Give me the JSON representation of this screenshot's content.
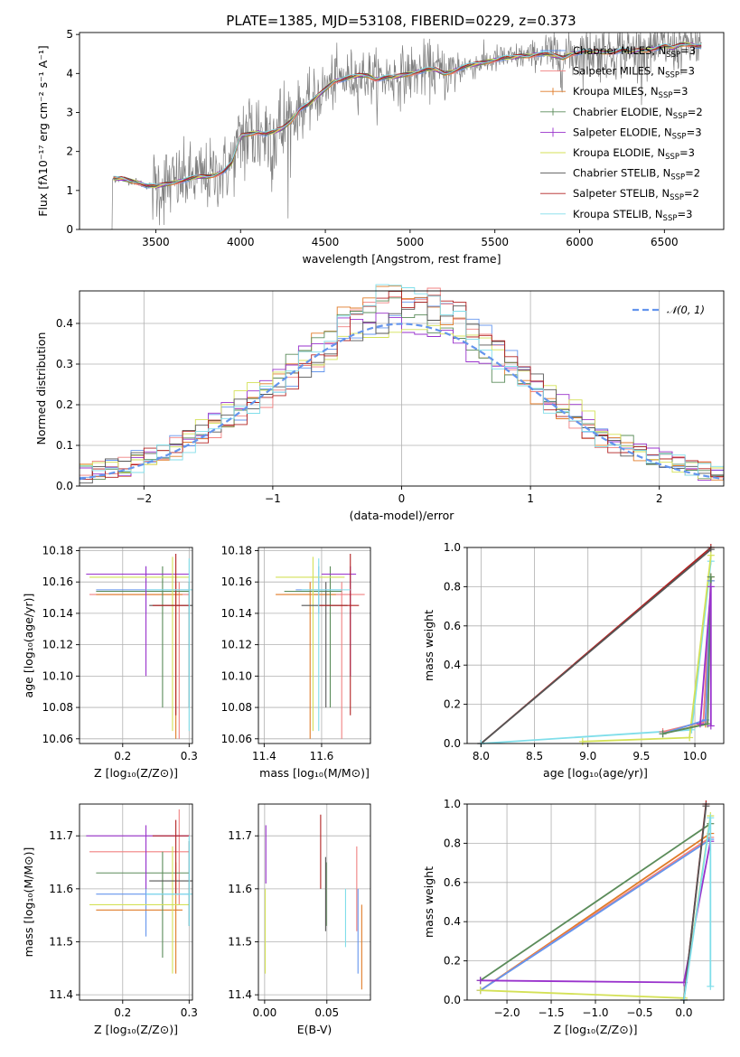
{
  "colors": {
    "chabrier_miles": "#6495ed",
    "salpeter_miles": "#f08080",
    "kroupa_miles": "#e07b28",
    "chabrier_elodie": "#5b8c5a",
    "salpeter_elodie": "#9932cc",
    "kroupa_elodie": "#d4e157",
    "chabrier_stelib": "#555555",
    "salpeter_stelib": "#b22222",
    "kroupa_stelib": "#80deea",
    "data_gray": "#808080",
    "normal": "#6495ed"
  },
  "models": [
    {
      "key": "chabrier_miles",
      "label": "Chabrier MILES, N",
      "nssp": "3"
    },
    {
      "key": "salpeter_miles",
      "label": "Salpeter MILES, N",
      "nssp": "3"
    },
    {
      "key": "kroupa_miles",
      "label": "Kroupa MILES, N",
      "nssp": "3"
    },
    {
      "key": "chabrier_elodie",
      "label": "Chabrier ELODIE, N",
      "nssp": "2"
    },
    {
      "key": "salpeter_elodie",
      "label": "Salpeter ELODIE, N",
      "nssp": "3"
    },
    {
      "key": "kroupa_elodie",
      "label": "Kroupa ELODIE, N",
      "nssp": "3"
    },
    {
      "key": "chabrier_stelib",
      "label": "Chabrier STELIB, N",
      "nssp": "2"
    },
    {
      "key": "salpeter_stelib",
      "label": "Salpeter STELIB, N",
      "nssp": "2"
    },
    {
      "key": "kroupa_stelib",
      "label": "Kroupa STELIB, N",
      "nssp": "3"
    }
  ],
  "nssp_subscript": "SSP",
  "chart_data": [
    {
      "id": "spectrum",
      "type": "line",
      "title": "PLATE=1385, MJD=53108, FIBERID=0229, z=0.373",
      "xlabel": "wavelength [Angstrom, rest frame]",
      "ylabel": "Flux [fλ10⁻¹⁷ erg cm⁻² s⁻¹ A⁻¹]",
      "xlim": [
        3050,
        6850
      ],
      "ylim": [
        0,
        5.05
      ],
      "xticks": [
        3500,
        4000,
        4500,
        5000,
        5500,
        6000,
        6500
      ],
      "yticks": [
        0,
        1,
        2,
        3,
        4,
        5
      ],
      "grid": false,
      "legend": "top-right",
      "model_continuum": [
        [
          3250,
          1.3
        ],
        [
          3300,
          1.3
        ],
        [
          3350,
          1.25
        ],
        [
          3400,
          1.2
        ],
        [
          3450,
          1.12
        ],
        [
          3500,
          1.1
        ],
        [
          3550,
          1.15
        ],
        [
          3600,
          1.2
        ],
        [
          3650,
          1.25
        ],
        [
          3700,
          1.3
        ],
        [
          3750,
          1.35
        ],
        [
          3800,
          1.35
        ],
        [
          3850,
          1.4
        ],
        [
          3900,
          1.5
        ],
        [
          3950,
          1.7
        ],
        [
          4000,
          2.4
        ],
        [
          4050,
          2.45
        ],
        [
          4100,
          2.5
        ],
        [
          4150,
          2.45
        ],
        [
          4200,
          2.5
        ],
        [
          4250,
          2.6
        ],
        [
          4300,
          2.8
        ],
        [
          4350,
          3.1
        ],
        [
          4400,
          3.2
        ],
        [
          4450,
          3.4
        ],
        [
          4500,
          3.6
        ],
        [
          4550,
          3.8
        ],
        [
          4600,
          3.85
        ],
        [
          4650,
          3.9
        ],
        [
          4700,
          3.95
        ],
        [
          4750,
          3.95
        ],
        [
          4800,
          3.85
        ],
        [
          4850,
          3.9
        ],
        [
          4900,
          3.9
        ],
        [
          4950,
          3.95
        ],
        [
          5000,
          4.0
        ],
        [
          5050,
          4.05
        ],
        [
          5100,
          4.1
        ],
        [
          5150,
          4.1
        ],
        [
          5200,
          4.0
        ],
        [
          5250,
          4.05
        ],
        [
          5300,
          4.15
        ],
        [
          5350,
          4.2
        ],
        [
          5400,
          4.25
        ],
        [
          5450,
          4.3
        ],
        [
          5500,
          4.35
        ],
        [
          5550,
          4.4
        ],
        [
          5600,
          4.4
        ],
        [
          5650,
          4.45
        ],
        [
          5700,
          4.45
        ],
        [
          5750,
          4.5
        ],
        [
          5800,
          4.5
        ],
        [
          5850,
          4.45
        ],
        [
          5900,
          4.4
        ],
        [
          5950,
          4.5
        ],
        [
          6000,
          4.55
        ],
        [
          6050,
          4.55
        ],
        [
          6100,
          4.55
        ],
        [
          6150,
          4.55
        ],
        [
          6200,
          4.55
        ],
        [
          6250,
          4.6
        ],
        [
          6300,
          4.55
        ],
        [
          6350,
          4.6
        ],
        [
          6400,
          4.6
        ],
        [
          6450,
          4.65
        ],
        [
          6500,
          4.7
        ],
        [
          6550,
          4.65
        ],
        [
          6600,
          4.75
        ],
        [
          6650,
          4.75
        ],
        [
          6700,
          4.7
        ]
      ]
    },
    {
      "id": "residuals",
      "type": "line",
      "xlabel": "(data-model)/error",
      "ylabel": "Normed distribution",
      "xlim": [
        -2.5,
        2.5
      ],
      "ylim": [
        0,
        0.48
      ],
      "xticks": [
        -2,
        -1,
        0,
        1,
        2
      ],
      "yticks": [
        0.0,
        0.1,
        0.2,
        0.3,
        0.4
      ],
      "grid": true,
      "legend": "top-right",
      "normal_label": "𝒩(0, 1)",
      "bin_width": 0.1
    },
    {
      "id": "z_vs_age",
      "type": "scatter",
      "xlabel": "Z [log₁₀(Z/Z⊙)]",
      "ylabel": "age  [log₁₀(age/yr)]",
      "xlim": [
        0.135,
        0.305
      ],
      "ylim": [
        10.057,
        10.182
      ],
      "xticks": [
        0.2,
        0.3
      ],
      "yticks": [
        10.06,
        10.08,
        10.1,
        10.12,
        10.14,
        10.16,
        10.18
      ],
      "grid": true
    },
    {
      "id": "mass_vs_age",
      "type": "scatter",
      "xlabel": "mass [log₁₀(M/M⊙)]",
      "xlim": [
        11.38,
        11.77
      ],
      "ylim": [
        10.057,
        10.182
      ],
      "xticks": [
        11.4,
        11.6
      ],
      "yticks": [
        10.06,
        10.08,
        10.1,
        10.12,
        10.14,
        10.16,
        10.18
      ],
      "grid": true
    },
    {
      "id": "age_vs_weight",
      "type": "line",
      "xlabel": "age  [log₁₀(age/yr)]",
      "ylabel": "mass weight",
      "xlim": [
        7.87,
        10.27
      ],
      "ylim": [
        0,
        1.0
      ],
      "xticks": [
        8.0,
        8.5,
        9.0,
        9.5,
        10.0
      ],
      "yticks": [
        0.0,
        0.2,
        0.4,
        0.6,
        0.8,
        1.0
      ],
      "grid": true
    },
    {
      "id": "z_vs_mass",
      "type": "scatter",
      "xlabel": "Z [log₁₀(Z/Z⊙)]",
      "ylabel": "mass [log₁₀(M/M⊙)]",
      "xlim": [
        0.135,
        0.305
      ],
      "ylim": [
        11.39,
        11.76
      ],
      "xticks": [
        0.2,
        0.3
      ],
      "yticks": [
        11.4,
        11.5,
        11.6,
        11.7
      ],
      "grid": true
    },
    {
      "id": "ebv_vs_mass",
      "type": "scatter",
      "xlabel": "E(B-V)",
      "xlim": [
        -0.005,
        0.085
      ],
      "ylim": [
        11.39,
        11.76
      ],
      "xticks": [
        0.0,
        0.05
      ],
      "yticks": [
        11.4,
        11.5,
        11.6,
        11.7
      ],
      "grid": true
    },
    {
      "id": "z_vs_weight",
      "type": "line",
      "xlabel": "Z [log₁₀(Z/Z⊙)]",
      "ylabel": "mass weight",
      "xlim": [
        -2.45,
        0.45
      ],
      "ylim": [
        0,
        1.0
      ],
      "xticks": [
        -2.0,
        -1.5,
        -1.0,
        -0.5,
        0.0
      ],
      "yticks": [
        0.0,
        0.2,
        0.4,
        0.6,
        0.8,
        1.0
      ],
      "grid": true
    }
  ],
  "fits": {
    "chabrier_miles": {
      "z": [
        0.16,
        0.235,
        0.3
      ],
      "age": [
        10.14,
        10.155,
        10.17
      ],
      "mass": [
        11.51,
        11.59,
        11.67
      ],
      "ebv": [
        0.075,
        0.076
      ],
      "ebv_mass": [
        11.44,
        11.6
      ]
    },
    "salpeter_miles": {
      "z": [
        0.15,
        0.285,
        0.3
      ],
      "age": [
        10.06,
        10.152,
        10.16
      ],
      "mass": [
        11.57,
        11.67,
        11.75
      ],
      "ebv": [
        0.074,
        0.075
      ],
      "ebv_mass": [
        11.52,
        11.68
      ]
    },
    "kroupa_miles": {
      "z": [
        0.16,
        0.28,
        0.29
      ],
      "age": [
        10.06,
        10.152,
        10.16
      ],
      "mass": [
        11.44,
        11.56,
        11.65
      ],
      "ebv": [
        0.078,
        0.079
      ],
      "ebv_mass": [
        11.41,
        11.57
      ]
    },
    "chabrier_elodie": {
      "z": [
        0.16,
        0.26,
        0.3
      ],
      "age": [
        10.08,
        10.154,
        10.17
      ],
      "mass": [
        11.47,
        11.63,
        11.67
      ],
      "ebv": [
        0.0495,
        0.05
      ],
      "ebv_mass": [
        11.53,
        11.65
      ]
    },
    "salpeter_elodie": {
      "z": [
        0.145,
        0.235,
        0.3
      ],
      "age": [
        10.1,
        10.165,
        10.17
      ],
      "mass": [
        11.6,
        11.7,
        11.72
      ],
      "ebv": [
        0.001,
        0.002
      ],
      "ebv_mass": [
        11.61,
        11.72
      ]
    },
    "kroupa_elodie": {
      "z": [
        0.15,
        0.275,
        0.3
      ],
      "age": [
        10.065,
        10.163,
        10.176
      ],
      "mass": [
        11.44,
        11.57,
        11.68
      ],
      "ebv": [
        0.0005,
        0.001
      ],
      "ebv_mass": [
        11.44,
        11.6
      ]
    },
    "chabrier_stelib": {
      "z": [
        0.24,
        0.3,
        0.305
      ],
      "age": [
        10.08,
        10.145,
        10.16
      ],
      "mass": [
        11.53,
        11.615,
        11.69
      ],
      "ebv": [
        0.049,
        0.05
      ],
      "ebv_mass": [
        11.52,
        11.66
      ]
    },
    "salpeter_stelib": {
      "z": [
        0.245,
        0.28,
        0.3
      ],
      "age": [
        10.075,
        10.145,
        10.178
      ],
      "mass": [
        11.59,
        11.7,
        11.73
      ],
      "ebv": [
        0.045,
        0.046
      ],
      "ebv_mass": [
        11.6,
        11.74
      ]
    },
    "kroupa_stelib": {
      "z": [
        0.235,
        0.3,
        0.305
      ],
      "age": [
        10.065,
        10.155,
        10.175
      ],
      "mass": [
        11.53,
        11.59,
        11.7
      ],
      "ebv": [
        0.065,
        0.066
      ],
      "ebv_mass": [
        11.49,
        11.6
      ]
    }
  },
  "weights": {
    "age": {
      "salpeter_stelib": [
        [
          8.0,
          0.0
        ],
        [
          10.15,
          1.0
        ]
      ],
      "chabrier_stelib": [
        [
          8.0,
          0.0
        ],
        [
          10.15,
          0.99
        ]
      ],
      "kroupa_stelib": [
        [
          8.0,
          0.0
        ],
        [
          9.97,
          0.07
        ],
        [
          10.15,
          0.93
        ]
      ],
      "kroupa_elodie": [
        [
          8.95,
          0.01
        ],
        [
          9.95,
          0.03
        ],
        [
          10.15,
          0.96
        ]
      ],
      "kroupa_miles": [
        [
          9.7,
          0.05
        ],
        [
          10.1,
          0.1
        ],
        [
          10.15,
          0.85
        ]
      ],
      "salpeter_miles": [
        [
          9.7,
          0.06
        ],
        [
          10.08,
          0.11
        ],
        [
          10.15,
          0.83
        ]
      ],
      "chabrier_miles": [
        [
          9.7,
          0.05
        ],
        [
          10.1,
          0.12
        ],
        [
          10.15,
          0.83
        ]
      ],
      "chabrier_elodie": [
        [
          9.7,
          0.05
        ],
        [
          10.12,
          0.1
        ],
        [
          10.15,
          0.85
        ]
      ],
      "salpeter_elodie": [
        [
          10.05,
          0.1
        ],
        [
          10.15,
          0.8
        ],
        [
          10.15,
          0.09
        ]
      ]
    },
    "z": {
      "chabrier_elodie": [
        [
          -2.3,
          0.1
        ],
        [
          0.3,
          0.9
        ]
      ],
      "kroupa_miles": [
        [
          -2.3,
          0.05
        ],
        [
          0.3,
          0.85
        ]
      ],
      "salpeter_miles": [
        [
          -2.3,
          0.05
        ],
        [
          0.3,
          0.83
        ]
      ],
      "chabrier_miles": [
        [
          -2.3,
          0.05
        ],
        [
          0.3,
          0.82
        ]
      ],
      "salpeter_elodie": [
        [
          -2.3,
          0.1
        ],
        [
          0.0,
          0.09
        ],
        [
          0.3,
          0.81
        ]
      ],
      "kroupa_elodie": [
        [
          -2.3,
          0.05
        ],
        [
          0.0,
          0.01
        ],
        [
          0.3,
          0.94
        ]
      ],
      "salpeter_stelib": [
        [
          0.0,
          0.0
        ],
        [
          0.25,
          1.0
        ]
      ],
      "chabrier_stelib": [
        [
          0.0,
          0.0
        ],
        [
          0.25,
          0.99
        ]
      ],
      "kroupa_stelib": [
        [
          0.0,
          0.0
        ],
        [
          0.3,
          0.93
        ],
        [
          0.3,
          0.07
        ]
      ]
    }
  }
}
